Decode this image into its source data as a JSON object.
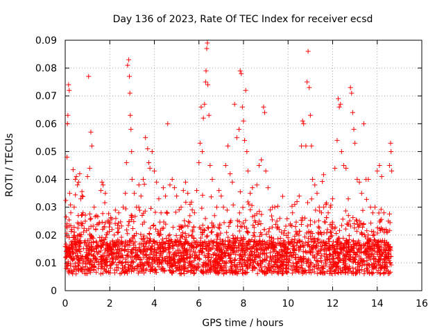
{
  "chart_data": {
    "type": "scatter",
    "title": "Day 136 of 2023, Rate Of TEC Index for receiver ecsd",
    "xlabel": "GPS time / hours",
    "ylabel": "ROTI / TECUs",
    "xlim": [
      0,
      16
    ],
    "ylim": [
      0,
      0.09
    ],
    "xticks": [
      0,
      2,
      4,
      6,
      8,
      10,
      12,
      14,
      16
    ],
    "yticks": [
      0,
      0.01,
      0.02,
      0.03,
      0.04,
      0.05,
      0.06,
      0.07,
      0.08,
      0.09
    ],
    "xtick_labels": [
      "0",
      "2",
      "4",
      "6",
      "8",
      "10",
      "12",
      "14",
      "16"
    ],
    "ytick_labels": [
      "0",
      "0.01",
      "0.02",
      "0.03",
      "0.04",
      "0.05",
      "0.06",
      "0.07",
      "0.08",
      "0.09"
    ],
    "grid": true,
    "marker": "+",
    "color": "#ff0000",
    "series": [
      {
        "points": [
          [
            0.05,
            0.012
          ],
          [
            0.08,
            0.048
          ],
          [
            0.1,
            0.06
          ],
          [
            0.12,
            0.063
          ],
          [
            0.15,
            0.074
          ],
          [
            0.18,
            0.072
          ],
          [
            0.2,
            0.035
          ],
          [
            0.25,
            0.028
          ],
          [
            0.3,
            0.022
          ],
          [
            0.4,
            0.03
          ],
          [
            0.45,
            0.04
          ],
          [
            0.5,
            0.041
          ],
          [
            0.55,
            0.038
          ],
          [
            0.6,
            0.039
          ],
          [
            0.65,
            0.042
          ],
          [
            0.7,
            0.033
          ],
          [
            0.8,
            0.028
          ],
          [
            0.9,
            0.025
          ],
          [
            1.0,
            0.041
          ],
          [
            1.05,
            0.077
          ],
          [
            1.1,
            0.044
          ],
          [
            1.15,
            0.057
          ],
          [
            1.2,
            0.052
          ],
          [
            1.3,
            0.03
          ],
          [
            1.4,
            0.027
          ],
          [
            1.5,
            0.024
          ],
          [
            1.6,
            0.036
          ],
          [
            1.65,
            0.039
          ],
          [
            1.7,
            0.038
          ],
          [
            1.8,
            0.035
          ],
          [
            1.9,
            0.025
          ],
          [
            2.0,
            0.024
          ],
          [
            2.1,
            0.022
          ],
          [
            2.2,
            0.02
          ],
          [
            2.4,
            0.028
          ],
          [
            2.6,
            0.03
          ],
          [
            2.7,
            0.035
          ],
          [
            2.75,
            0.046
          ],
          [
            2.8,
            0.081
          ],
          [
            2.85,
            0.083
          ],
          [
            2.88,
            0.077
          ],
          [
            2.9,
            0.071
          ],
          [
            2.92,
            0.063
          ],
          [
            2.95,
            0.058
          ],
          [
            2.98,
            0.05
          ],
          [
            3.0,
            0.04
          ],
          [
            3.1,
            0.035
          ],
          [
            3.2,
            0.03
          ],
          [
            3.3,
            0.03
          ],
          [
            3.4,
            0.034
          ],
          [
            3.5,
            0.04
          ],
          [
            3.6,
            0.055
          ],
          [
            3.7,
            0.051
          ],
          [
            3.75,
            0.046
          ],
          [
            3.8,
            0.044
          ],
          [
            3.9,
            0.05
          ],
          [
            4.0,
            0.043
          ],
          [
            4.1,
            0.039
          ],
          [
            4.2,
            0.033
          ],
          [
            4.3,
            0.028
          ],
          [
            4.4,
            0.037
          ],
          [
            4.5,
            0.034
          ],
          [
            4.6,
            0.06
          ],
          [
            4.7,
            0.038
          ],
          [
            4.8,
            0.04
          ],
          [
            4.9,
            0.037
          ],
          [
            5.0,
            0.034
          ],
          [
            5.2,
            0.03
          ],
          [
            5.3,
            0.036
          ],
          [
            5.4,
            0.039
          ],
          [
            5.5,
            0.035
          ],
          [
            5.6,
            0.031
          ],
          [
            5.7,
            0.029
          ],
          [
            5.8,
            0.028
          ],
          [
            5.9,
            0.036
          ],
          [
            6.0,
            0.046
          ],
          [
            6.05,
            0.053
          ],
          [
            6.1,
            0.066
          ],
          [
            6.15,
            0.05
          ],
          [
            6.2,
            0.062
          ],
          [
            6.25,
            0.067
          ],
          [
            6.3,
            0.075
          ],
          [
            6.32,
            0.079
          ],
          [
            6.35,
            0.087
          ],
          [
            6.38,
            0.089
          ],
          [
            6.4,
            0.074
          ],
          [
            6.45,
            0.063
          ],
          [
            6.5,
            0.045
          ],
          [
            6.6,
            0.04
          ],
          [
            6.7,
            0.027
          ],
          [
            6.8,
            0.03
          ],
          [
            6.9,
            0.036
          ],
          [
            7.0,
            0.034
          ],
          [
            7.1,
            0.03
          ],
          [
            7.2,
            0.045
          ],
          [
            7.3,
            0.052
          ],
          [
            7.4,
            0.042
          ],
          [
            7.5,
            0.039
          ],
          [
            7.6,
            0.067
          ],
          [
            7.7,
            0.055
          ],
          [
            7.8,
            0.058
          ],
          [
            7.85,
            0.079
          ],
          [
            7.9,
            0.078
          ],
          [
            7.95,
            0.066
          ],
          [
            8.0,
            0.061
          ],
          [
            8.05,
            0.054
          ],
          [
            8.1,
            0.072
          ],
          [
            8.15,
            0.05
          ],
          [
            8.2,
            0.043
          ],
          [
            8.3,
            0.035
          ],
          [
            8.4,
            0.037
          ],
          [
            8.5,
            0.027
          ],
          [
            8.6,
            0.038
          ],
          [
            8.7,
            0.045
          ],
          [
            8.8,
            0.047
          ],
          [
            8.9,
            0.066
          ],
          [
            8.95,
            0.064
          ],
          [
            9.0,
            0.043
          ],
          [
            9.1,
            0.037
          ],
          [
            9.2,
            0.029
          ],
          [
            9.3,
            0.03
          ],
          [
            9.4,
            0.03
          ],
          [
            9.5,
            0.025
          ],
          [
            9.6,
            0.022
          ],
          [
            9.7,
            0.021
          ],
          [
            9.8,
            0.018
          ],
          [
            9.9,
            0.016
          ],
          [
            10.0,
            0.019
          ],
          [
            10.1,
            0.024
          ],
          [
            10.2,
            0.028
          ],
          [
            10.3,
            0.031
          ],
          [
            10.4,
            0.032
          ],
          [
            10.5,
            0.034
          ],
          [
            10.6,
            0.052
          ],
          [
            10.65,
            0.061
          ],
          [
            10.7,
            0.06
          ],
          [
            10.8,
            0.052
          ],
          [
            10.85,
            0.075
          ],
          [
            10.9,
            0.086
          ],
          [
            10.95,
            0.073
          ],
          [
            11.0,
            0.063
          ],
          [
            11.05,
            0.052
          ],
          [
            11.1,
            0.04
          ],
          [
            11.2,
            0.038
          ],
          [
            11.3,
            0.035
          ],
          [
            11.4,
            0.03
          ],
          [
            11.5,
            0.028
          ],
          [
            11.6,
            0.03
          ],
          [
            11.7,
            0.031
          ],
          [
            11.8,
            0.028
          ],
          [
            11.9,
            0.03
          ],
          [
            12.0,
            0.033
          ],
          [
            12.1,
            0.044
          ],
          [
            12.2,
            0.054
          ],
          [
            12.25,
            0.069
          ],
          [
            12.3,
            0.066
          ],
          [
            12.35,
            0.067
          ],
          [
            12.4,
            0.05
          ],
          [
            12.5,
            0.045
          ],
          [
            12.6,
            0.044
          ],
          [
            12.7,
            0.033
          ],
          [
            12.8,
            0.073
          ],
          [
            12.85,
            0.071
          ],
          [
            12.9,
            0.064
          ],
          [
            12.95,
            0.058
          ],
          [
            13.0,
            0.053
          ],
          [
            13.1,
            0.04
          ],
          [
            13.2,
            0.039
          ],
          [
            13.3,
            0.035
          ],
          [
            13.4,
            0.06
          ],
          [
            13.5,
            0.04
          ],
          [
            13.6,
            0.04
          ],
          [
            13.7,
            0.03
          ],
          [
            13.8,
            0.028
          ],
          [
            13.9,
            0.03
          ],
          [
            14.0,
            0.043
          ],
          [
            14.1,
            0.045
          ],
          [
            14.2,
            0.041
          ],
          [
            14.3,
            0.028
          ],
          [
            14.4,
            0.022
          ],
          [
            14.5,
            0.025
          ],
          [
            14.55,
            0.045
          ],
          [
            14.6,
            0.053
          ],
          [
            14.62,
            0.05
          ],
          [
            14.65,
            0.043
          ]
        ]
      }
    ]
  }
}
